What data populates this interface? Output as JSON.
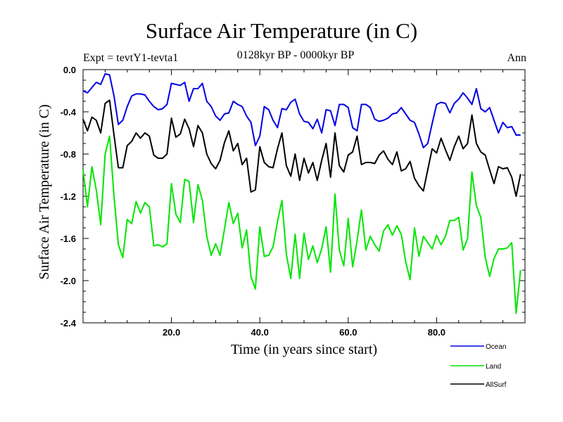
{
  "chart_data": {
    "type": "line",
    "title": "Surface Air Temperature (in C)",
    "subtitle_left": "Expt = tevtY1-tevta1",
    "subtitle_center": "0128kyr BP - 0000kyr BP",
    "subtitle_right": "Ann",
    "xlabel": "Time (in years since start)",
    "ylabel": "Surface Air Temperature (in C)",
    "xlim": [
      0,
      100
    ],
    "ylim": [
      -2.4,
      0.0
    ],
    "xticks": [
      20,
      40,
      60,
      80
    ],
    "xtick_labels": [
      "20.0",
      "40.0",
      "60.0",
      "80.0"
    ],
    "yticks": [
      0.0,
      -0.4,
      -0.8,
      -1.2,
      -1.6,
      -2.0,
      -2.4
    ],
    "ytick_labels": [
      "0.0",
      "-0.4",
      "-0.8",
      "-1.2",
      "-1.6",
      "-2.0",
      "-2.4"
    ],
    "x": [
      0,
      1,
      2,
      3,
      4,
      5,
      6,
      7,
      8,
      9,
      10,
      11,
      12,
      13,
      14,
      15,
      16,
      17,
      18,
      19,
      20,
      21,
      22,
      23,
      24,
      25,
      26,
      27,
      28,
      29,
      30,
      31,
      32,
      33,
      34,
      35,
      36,
      37,
      38,
      39,
      40,
      41,
      42,
      43,
      44,
      45,
      46,
      47,
      48,
      49,
      50,
      51,
      52,
      53,
      54,
      55,
      56,
      57,
      58,
      59,
      60,
      61,
      62,
      63,
      64,
      65,
      66,
      67,
      68,
      69,
      70,
      71,
      72,
      73,
      74,
      75,
      76,
      77,
      78,
      79,
      80,
      81,
      82,
      83,
      84,
      85,
      86,
      87,
      88,
      89,
      90,
      91,
      92,
      93,
      94,
      95,
      96,
      97,
      98,
      99
    ],
    "series": [
      {
        "name": "Ocean",
        "color": "#0000e6",
        "values": [
          -0.2,
          -0.22,
          -0.17,
          -0.12,
          -0.14,
          -0.04,
          -0.05,
          -0.25,
          -0.52,
          -0.48,
          -0.35,
          -0.25,
          -0.23,
          -0.23,
          -0.24,
          -0.3,
          -0.35,
          -0.38,
          -0.37,
          -0.33,
          -0.13,
          -0.14,
          -0.15,
          -0.12,
          -0.3,
          -0.18,
          -0.18,
          -0.13,
          -0.3,
          -0.35,
          -0.44,
          -0.48,
          -0.42,
          -0.41,
          -0.3,
          -0.33,
          -0.35,
          -0.44,
          -0.5,
          -0.72,
          -0.63,
          -0.35,
          -0.38,
          -0.48,
          -0.55,
          -0.37,
          -0.38,
          -0.31,
          -0.28,
          -0.42,
          -0.49,
          -0.5,
          -0.56,
          -0.47,
          -0.6,
          -0.38,
          -0.39,
          -0.53,
          -0.33,
          -0.33,
          -0.36,
          -0.55,
          -0.58,
          -0.33,
          -0.33,
          -0.36,
          -0.47,
          -0.49,
          -0.48,
          -0.46,
          -0.42,
          -0.41,
          -0.36,
          -0.42,
          -0.48,
          -0.5,
          -0.61,
          -0.74,
          -0.7,
          -0.51,
          -0.33,
          -0.31,
          -0.32,
          -0.41,
          -0.32,
          -0.28,
          -0.22,
          -0.27,
          -0.33,
          -0.18,
          -0.37,
          -0.4,
          -0.36,
          -0.48,
          -0.6,
          -0.5,
          -0.55,
          -0.54,
          -0.62,
          -0.62
        ]
      },
      {
        "name": "Land",
        "color": "#00e600",
        "values": [
          -0.95,
          -1.3,
          -0.92,
          -1.14,
          -1.47,
          -0.8,
          -0.63,
          -1.2,
          -1.66,
          -1.78,
          -1.42,
          -1.46,
          -1.25,
          -1.36,
          -1.26,
          -1.3,
          -1.67,
          -1.66,
          -1.68,
          -1.65,
          -1.08,
          -1.37,
          -1.45,
          -1.04,
          -1.06,
          -1.45,
          -1.09,
          -1.24,
          -1.58,
          -1.76,
          -1.65,
          -1.76,
          -1.51,
          -1.26,
          -1.46,
          -1.36,
          -1.69,
          -1.52,
          -1.96,
          -2.08,
          -1.49,
          -1.77,
          -1.76,
          -1.68,
          -1.44,
          -1.24,
          -1.75,
          -1.98,
          -1.56,
          -1.98,
          -1.55,
          -1.8,
          -1.67,
          -1.83,
          -1.7,
          -1.49,
          -1.92,
          -1.18,
          -1.71,
          -1.86,
          -1.41,
          -1.87,
          -1.62,
          -1.33,
          -1.71,
          -1.58,
          -1.66,
          -1.72,
          -1.53,
          -1.47,
          -1.57,
          -1.48,
          -1.56,
          -1.82,
          -1.99,
          -1.5,
          -1.77,
          -1.58,
          -1.64,
          -1.7,
          -1.57,
          -1.66,
          -1.58,
          -1.43,
          -1.43,
          -1.4,
          -1.71,
          -1.6,
          -0.97,
          -1.29,
          -1.4,
          -1.78,
          -1.96,
          -1.79,
          -1.7,
          -1.7,
          -1.69,
          -1.64,
          -2.31,
          -1.9
        ]
      },
      {
        "name": "AllSurf",
        "color": "#000000",
        "values": [
          -0.47,
          -0.58,
          -0.45,
          -0.48,
          -0.6,
          -0.32,
          -0.29,
          -0.62,
          -0.93,
          -0.93,
          -0.72,
          -0.68,
          -0.6,
          -0.65,
          -0.6,
          -0.63,
          -0.81,
          -0.84,
          -0.84,
          -0.8,
          -0.46,
          -0.64,
          -0.61,
          -0.47,
          -0.56,
          -0.73,
          -0.53,
          -0.6,
          -0.8,
          -0.89,
          -0.94,
          -0.86,
          -0.69,
          -0.58,
          -0.77,
          -0.7,
          -0.9,
          -0.84,
          -1.16,
          -1.14,
          -0.73,
          -0.88,
          -0.92,
          -0.93,
          -0.75,
          -0.6,
          -0.91,
          -1.01,
          -0.8,
          -1.05,
          -0.84,
          -0.98,
          -0.88,
          -1.05,
          -0.86,
          -0.7,
          -1.02,
          -0.6,
          -0.91,
          -0.97,
          -0.81,
          -0.78,
          -0.63,
          -0.9,
          -0.88,
          -0.88,
          -0.89,
          -0.81,
          -0.77,
          -0.85,
          -0.9,
          -0.78,
          -0.96,
          -0.94,
          -0.87,
          -1.03,
          -1.1,
          -1.15,
          -0.95,
          -0.75,
          -0.79,
          -0.65,
          -0.76,
          -0.86,
          -0.73,
          -0.63,
          -0.75,
          -0.7,
          -0.43,
          -0.7,
          -0.78,
          -0.81,
          -0.95,
          -1.08,
          -0.92,
          -0.94,
          -0.93,
          -1.02,
          -1.2,
          -0.99
        ]
      }
    ],
    "legend_position": "bottom-right"
  }
}
